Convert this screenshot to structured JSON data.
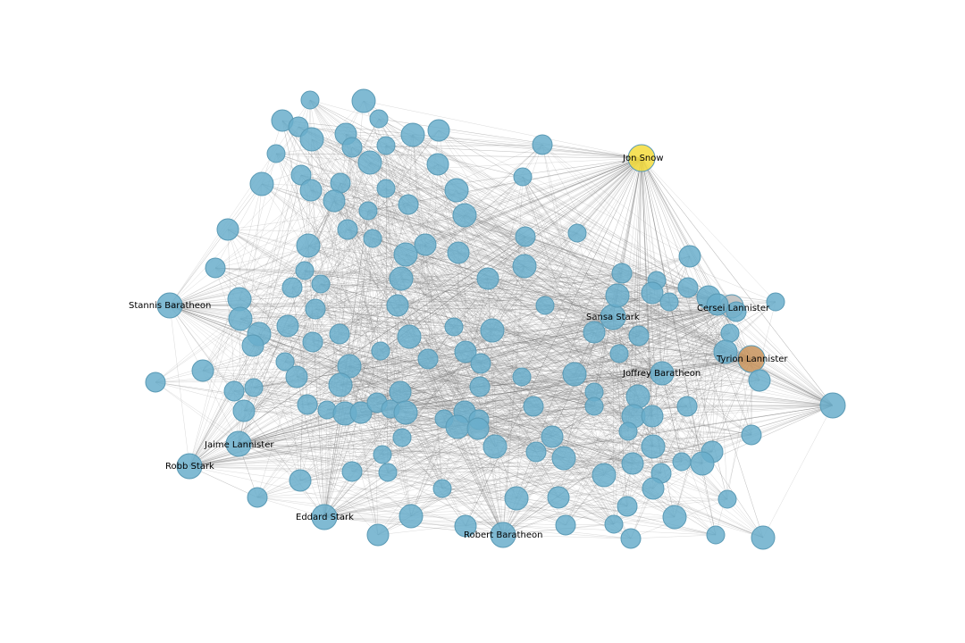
{
  "colors": {
    "default_node": "#6aaecb",
    "highlight_top": "#f5dc3c",
    "highlight_second": "#c8935c",
    "highlight_third": "#bdbdbd",
    "edge": "#7a7a7a",
    "label": "#000000"
  },
  "labels": {
    "jon_snow": "Jon Snow",
    "cersei_lannister": "Cersei Lannister",
    "tyrion_lannister": "Tyrion Lannister",
    "sansa_stark": "Sansa Stark",
    "joffrey_baratheon": "Joffrey Baratheon",
    "stannis_baratheon": "Stannis Baratheon",
    "jaime_lannister": "Jaime Lannister",
    "robb_stark": "Robb Stark",
    "eddard_stark": "Eddard Stark",
    "robert_baratheon": "Robert Baratheon"
  }
}
